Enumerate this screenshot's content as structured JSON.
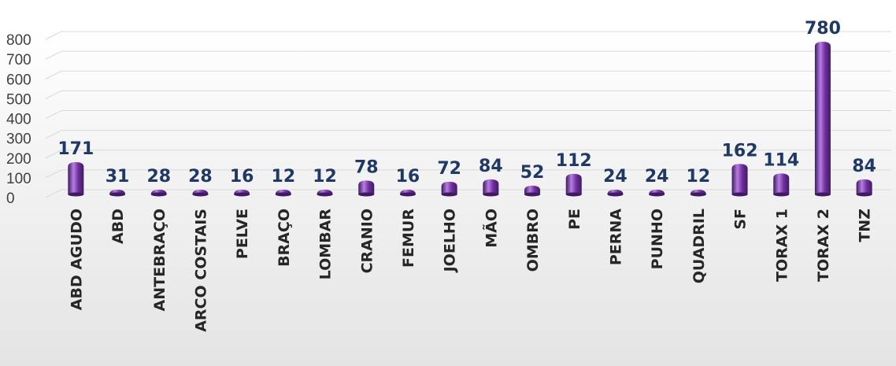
{
  "chart_data": {
    "type": "bar",
    "title": "",
    "xlabel": "",
    "ylabel": "",
    "categories": [
      "ABD AGUDO",
      "ABD",
      "ANTEBRAÇO",
      "ARCO COSTAIS",
      "PELVE",
      "BRAÇO",
      "LOMBAR",
      "CRANIO",
      "FEMUR",
      "JOELHO",
      "MÃO",
      "OMBRO",
      "PE",
      "PERNA",
      "PUNHO",
      "QUADRIL",
      "SF",
      "TORAX 1",
      "TORAX 2",
      "TNZ"
    ],
    "values": [
      171,
      31,
      28,
      28,
      16,
      12,
      12,
      78,
      16,
      72,
      84,
      52,
      112,
      24,
      24,
      12,
      162,
      114,
      780,
      84
    ],
    "ylim": [
      0,
      800
    ],
    "yticks": [
      0,
      100,
      200,
      300,
      400,
      500,
      600,
      700,
      800
    ],
    "grid": true,
    "legend": "none",
    "bar_color": "#7030a0",
    "bar_highlight_color": "#b57ee0",
    "bar_shadow_color": "#3f1a63",
    "value_label_color": "#1f3864",
    "category_label_color": "#262626"
  }
}
